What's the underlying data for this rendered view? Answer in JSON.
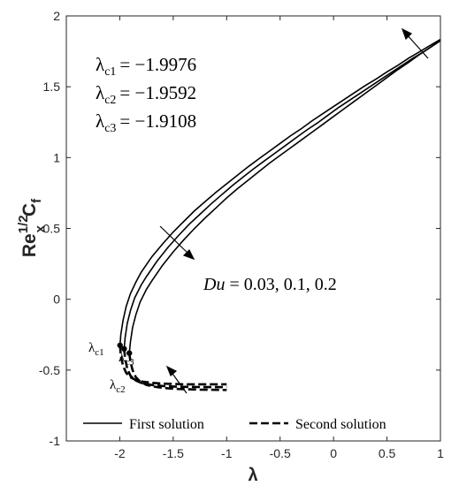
{
  "chart_data": {
    "type": "line",
    "xlabel": "λ",
    "ylabel": {
      "base": "Re",
      "sup": "1/2",
      "sub": "x",
      "tail": "C",
      "tail_sub": "f"
    },
    "xlim": [
      -2.5,
      1
    ],
    "ylim": [
      -1,
      2
    ],
    "x_ticks": [
      -2,
      -1.5,
      -1,
      -0.5,
      0,
      0.5,
      1
    ],
    "x_tick_labels": [
      "-2",
      "-1.5",
      "-1",
      "-0.5",
      "0",
      "0.5",
      "1"
    ],
    "y_ticks": [
      -1,
      -0.5,
      0,
      0.5,
      1,
      1.5,
      2
    ],
    "y_tick_labels": [
      "-1",
      "-0.5",
      "0",
      "0.5",
      "1",
      "1.5",
      "2"
    ],
    "critical_values": [
      {
        "label": "λ",
        "sub": "c1",
        "text": "= −1.9976",
        "lambda": -1.9976,
        "cf": -0.325
      },
      {
        "label": "λ",
        "sub": "c2",
        "text": "= −1.9592",
        "lambda": -1.9592,
        "cf": -0.35
      },
      {
        "label": "λ",
        "sub": "c3",
        "text": "= −1.9108",
        "lambda": -1.9108,
        "cf": -0.38
      }
    ],
    "du_annotation": {
      "var": "Du",
      "text": " = 0.03, 0.1, 0.2"
    },
    "series": [
      {
        "name": "First solution",
        "style": "solid",
        "curves": [
          {
            "du": 0.03,
            "points": [
              [
                -1.9976,
                -0.325
              ],
              [
                -1.99,
                -0.25
              ],
              [
                -1.97,
                -0.15
              ],
              [
                -1.94,
                -0.05
              ],
              [
                -1.9,
                0.04
              ],
              [
                -1.85,
                0.12
              ],
              [
                -1.8,
                0.19
              ],
              [
                -1.7,
                0.3
              ],
              [
                -1.6,
                0.39
              ],
              [
                -1.5,
                0.475
              ],
              [
                -1.4,
                0.55
              ],
              [
                -1.3,
                0.625
              ],
              [
                -1.2,
                0.69
              ],
              [
                -1.1,
                0.755
              ],
              [
                -1,
                0.815
              ],
              [
                -0.9,
                0.875
              ],
              [
                -0.8,
                0.935
              ],
              [
                -0.7,
                0.99
              ],
              [
                -0.6,
                1.045
              ],
              [
                -0.5,
                1.1
              ],
              [
                -0.4,
                1.155
              ],
              [
                -0.3,
                1.205
              ],
              [
                -0.2,
                1.26
              ],
              [
                -0.1,
                1.31
              ],
              [
                0,
                1.36
              ],
              [
                0.1,
                1.41
              ],
              [
                0.2,
                1.46
              ],
              [
                0.3,
                1.51
              ],
              [
                0.4,
                1.555
              ],
              [
                0.5,
                1.605
              ],
              [
                0.6,
                1.65
              ],
              [
                0.7,
                1.7
              ],
              [
                0.8,
                1.745
              ],
              [
                0.9,
                1.79
              ],
              [
                1,
                1.835
              ]
            ]
          },
          {
            "du": 0.1,
            "points": [
              [
                -1.9592,
                -0.35
              ],
              [
                -1.95,
                -0.27
              ],
              [
                -1.93,
                -0.17
              ],
              [
                -1.9,
                -0.08
              ],
              [
                -1.86,
                0.01
              ],
              [
                -1.8,
                0.1
              ],
              [
                -1.75,
                0.16
              ],
              [
                -1.65,
                0.27
              ],
              [
                -1.55,
                0.365
              ],
              [
                -1.45,
                0.45
              ],
              [
                -1.35,
                0.53
              ],
              [
                -1.25,
                0.6
              ],
              [
                -1.15,
                0.67
              ],
              [
                -1.05,
                0.735
              ],
              [
                -0.95,
                0.8
              ],
              [
                -0.85,
                0.86
              ],
              [
                -0.75,
                0.92
              ],
              [
                -0.65,
                0.975
              ],
              [
                -0.55,
                1.03
              ],
              [
                -0.45,
                1.085
              ],
              [
                -0.35,
                1.14
              ],
              [
                -0.25,
                1.195
              ],
              [
                -0.15,
                1.245
              ],
              [
                -0.05,
                1.3
              ],
              [
                0.05,
                1.355
              ],
              [
                0.15,
                1.405
              ],
              [
                0.25,
                1.455
              ],
              [
                0.35,
                1.505
              ],
              [
                0.45,
                1.555
              ],
              [
                0.55,
                1.605
              ],
              [
                0.65,
                1.655
              ],
              [
                0.75,
                1.705
              ],
              [
                0.85,
                1.75
              ],
              [
                0.95,
                1.8
              ],
              [
                1,
                1.825
              ]
            ]
          },
          {
            "du": 0.2,
            "points": [
              [
                -1.9108,
                -0.38
              ],
              [
                -1.9,
                -0.3
              ],
              [
                -1.88,
                -0.2
              ],
              [
                -1.85,
                -0.11
              ],
              [
                -1.81,
                -0.02
              ],
              [
                -1.75,
                0.07
              ],
              [
                -1.7,
                0.13
              ],
              [
                -1.6,
                0.24
              ],
              [
                -1.5,
                0.335
              ],
              [
                -1.4,
                0.42
              ],
              [
                -1.3,
                0.5
              ],
              [
                -1.2,
                0.575
              ],
              [
                -1.1,
                0.645
              ],
              [
                -1,
                0.715
              ],
              [
                -0.9,
                0.78
              ],
              [
                -0.8,
                0.84
              ],
              [
                -0.7,
                0.9
              ],
              [
                -0.6,
                0.96
              ],
              [
                -0.5,
                1.015
              ],
              [
                -0.4,
                1.07
              ],
              [
                -0.3,
                1.125
              ],
              [
                -0.2,
                1.18
              ],
              [
                -0.1,
                1.235
              ],
              [
                0,
                1.29
              ],
              [
                0.1,
                1.345
              ],
              [
                0.2,
                1.4
              ],
              [
                0.3,
                1.455
              ],
              [
                0.4,
                1.51
              ],
              [
                0.5,
                1.565
              ],
              [
                0.6,
                1.62
              ],
              [
                0.7,
                1.67
              ],
              [
                0.8,
                1.725
              ],
              [
                0.9,
                1.775
              ],
              [
                1,
                1.83
              ]
            ]
          }
        ]
      },
      {
        "name": "Second solution",
        "style": "dashed",
        "curves": [
          {
            "du": 0.03,
            "points": [
              [
                -1.9976,
                -0.325
              ],
              [
                -1.99,
                -0.4
              ],
              [
                -1.97,
                -0.47
              ],
              [
                -1.94,
                -0.52
              ],
              [
                -1.9,
                -0.55
              ],
              [
                -1.85,
                -0.57
              ],
              [
                -1.8,
                -0.58
              ],
              [
                -1.7,
                -0.59
              ],
              [
                -1.6,
                -0.595
              ],
              [
                -1.5,
                -0.598
              ],
              [
                -1.4,
                -0.6
              ],
              [
                -1.3,
                -0.6
              ],
              [
                -1.2,
                -0.6
              ],
              [
                -1.1,
                -0.6
              ],
              [
                -1,
                -0.6
              ]
            ]
          },
          {
            "du": 0.1,
            "points": [
              [
                -1.9592,
                -0.35
              ],
              [
                -1.95,
                -0.42
              ],
              [
                -1.93,
                -0.49
              ],
              [
                -1.9,
                -0.54
              ],
              [
                -1.86,
                -0.57
              ],
              [
                -1.8,
                -0.59
              ],
              [
                -1.7,
                -0.605
              ],
              [
                -1.6,
                -0.612
              ],
              [
                -1.5,
                -0.616
              ],
              [
                -1.4,
                -0.618
              ],
              [
                -1.3,
                -0.619
              ],
              [
                -1.2,
                -0.62
              ],
              [
                -1.1,
                -0.62
              ],
              [
                -1,
                -0.62
              ]
            ]
          },
          {
            "du": 0.2,
            "points": [
              [
                -1.9108,
                -0.38
              ],
              [
                -1.9,
                -0.44
              ],
              [
                -1.88,
                -0.5
              ],
              [
                -1.85,
                -0.55
              ],
              [
                -1.81,
                -0.58
              ],
              [
                -1.75,
                -0.605
              ],
              [
                -1.65,
                -0.62
              ],
              [
                -1.55,
                -0.628
              ],
              [
                -1.45,
                -0.633
              ],
              [
                -1.35,
                -0.636
              ],
              [
                -1.25,
                -0.638
              ],
              [
                -1.15,
                -0.639
              ],
              [
                -1,
                -0.64
              ]
            ]
          }
        ]
      }
    ],
    "legend": {
      "placement": "bottom",
      "entries": [
        "First solution",
        "Second solution"
      ]
    },
    "grid": false
  }
}
